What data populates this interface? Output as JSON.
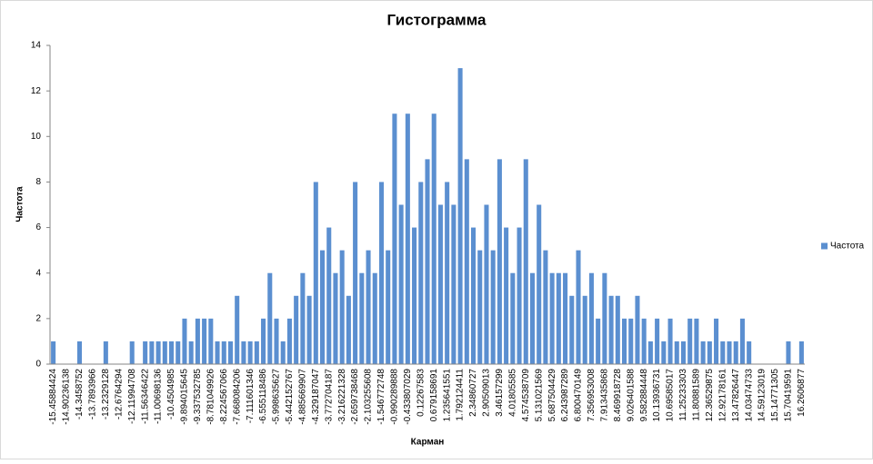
{
  "chart_data": {
    "type": "bar",
    "title": "Гистограмма",
    "x_label": "Карман",
    "y_label": "Частота",
    "categories": [
      "-15.45884424",
      null,
      "-14.90236138",
      null,
      "-14.3458752",
      null,
      "-13.7893966",
      null,
      "-13.2329128",
      null,
      "-12.6764294",
      null,
      "-12.11994708",
      null,
      "-11.56346422",
      null,
      "-11.00698136",
      null,
      "-10.4504985",
      null,
      "-9.894015645",
      null,
      "-9.337532785",
      null,
      "-8.781049926",
      null,
      "-8.224567066",
      null,
      "-7.668084206",
      null,
      "-7.111601346",
      null,
      "-6.555118486",
      null,
      "-5.998635627",
      null,
      "-5.442152767",
      null,
      "-4.885669907",
      null,
      "-4.329187047",
      null,
      "-3.772704187",
      null,
      "-3.216221328",
      null,
      "-2.659738468",
      null,
      "-2.103255608",
      null,
      "-1.546772748",
      null,
      "-0.990289888",
      null,
      "-0.433807029",
      null,
      "0.12267583",
      null,
      "0.679158691",
      null,
      "1.235641551",
      null,
      "1.792124411",
      null,
      "2.34860727",
      null,
      "2.90509013",
      null,
      "3.46157299",
      null,
      "4.01805585",
      null,
      "4.574538709",
      null,
      "5.131021569",
      null,
      "5.687504429",
      null,
      "6.243987289",
      null,
      "6.800470149",
      null,
      "7.356953008",
      null,
      "7.913435868",
      null,
      "8.469918728",
      null,
      "9.026401588",
      null,
      "9.582884448",
      null,
      "10.13936731",
      null,
      "10.69585017",
      null,
      "11.25233303",
      null,
      "11.80881589",
      null,
      "12.36529875",
      null,
      "12.92178161",
      null,
      "13.47826447",
      null,
      "14.03474733",
      null,
      "14.59123019",
      null,
      "15.14771305",
      null,
      "15.70419591",
      null,
      "16.2606877"
    ],
    "series": [
      {
        "name": "Частота",
        "color": "#5b8fd0",
        "values": [
          1,
          0,
          0,
          0,
          1,
          0,
          0,
          0,
          1,
          0,
          0,
          0,
          1,
          0,
          1,
          1,
          1,
          1,
          1,
          1,
          2,
          1,
          2,
          2,
          2,
          1,
          1,
          1,
          3,
          1,
          1,
          1,
          2,
          4,
          2,
          1,
          2,
          3,
          4,
          3,
          8,
          5,
          6,
          4,
          5,
          3,
          8,
          4,
          5,
          4,
          8,
          5,
          11,
          7,
          11,
          6,
          8,
          9,
          11,
          7,
          8,
          7,
          13,
          9,
          6,
          5,
          7,
          5,
          9,
          6,
          4,
          6,
          9,
          4,
          7,
          5,
          4,
          4,
          4,
          3,
          5,
          3,
          4,
          2,
          4,
          3,
          3,
          2,
          2,
          3,
          2,
          1,
          2,
          1,
          2,
          1,
          1,
          2,
          2,
          1,
          1,
          2,
          1,
          1,
          1,
          2,
          1,
          0,
          0,
          0,
          0,
          0,
          1,
          0,
          1
        ]
      }
    ],
    "ylim": [
      0,
      14
    ],
    "yticks": [
      0,
      2,
      4,
      6,
      8,
      10,
      12,
      14
    ],
    "legend": "right"
  }
}
